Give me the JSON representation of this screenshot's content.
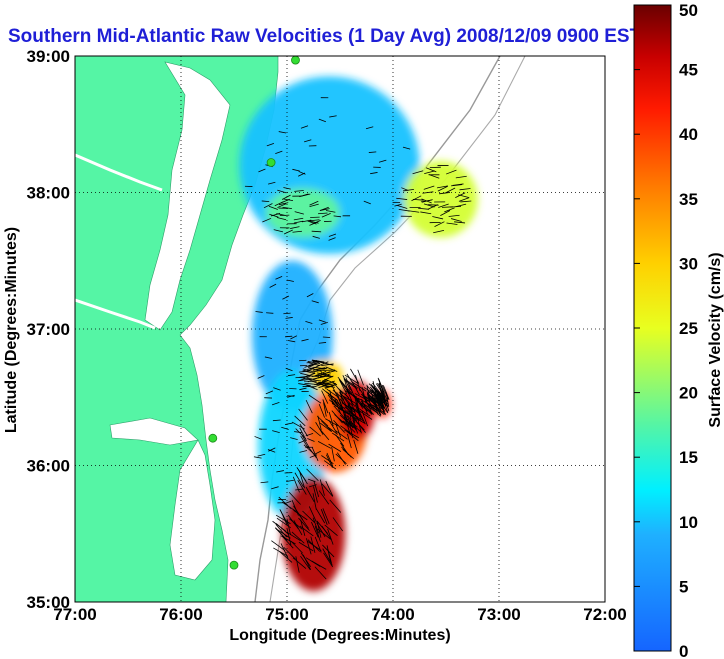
{
  "chart_data": {
    "type": "heatmap",
    "title": "Southern Mid-Atlantic Raw Velocities (1 Day Avg) 2008/12/09 0900 EST",
    "xlabel": "Longitude (Degrees:Minutes)",
    "ylabel": "Latitude (Degrees:Minutes)",
    "xlim": [
      -77,
      -72
    ],
    "ylim": [
      35,
      39
    ],
    "x_ticks": [
      {
        "value": -77,
        "label": "77:00"
      },
      {
        "value": -76,
        "label": "76:00"
      },
      {
        "value": -75,
        "label": "75:00"
      },
      {
        "value": -74,
        "label": "74:00"
      },
      {
        "value": -73,
        "label": "73:00"
      },
      {
        "value": -72,
        "label": "72:00"
      }
    ],
    "y_ticks": [
      {
        "value": 35,
        "label": "35:00"
      },
      {
        "value": 36,
        "label": "36:00"
      },
      {
        "value": 37,
        "label": "37:00"
      },
      {
        "value": 38,
        "label": "38:00"
      },
      {
        "value": 39,
        "label": "39:00"
      }
    ],
    "grid": true,
    "colorbar": {
      "label": "Surface Velocity (cm/s)",
      "range": [
        0,
        50
      ],
      "ticks": [
        {
          "value": 0,
          "label": "0"
        },
        {
          "value": 5,
          "label": "5"
        },
        {
          "value": 10,
          "label": "10"
        },
        {
          "value": 15,
          "label": "15"
        },
        {
          "value": 20,
          "label": "20"
        },
        {
          "value": 25,
          "label": "25"
        },
        {
          "value": 30,
          "label": "30"
        },
        {
          "value": 35,
          "label": "35"
        },
        {
          "value": 40,
          "label": "40"
        },
        {
          "value": 45,
          "label": "45"
        },
        {
          "value": 50,
          "label": "50"
        }
      ]
    },
    "colors": {
      "land": "#55f5a5",
      "water_bg": "#ffffff",
      "title": "#1f1fd6",
      "stations": "#33dd33",
      "bathymetry": "#999999"
    },
    "field_patches": [
      {
        "lon": -74.6,
        "lat": 38.2,
        "rx": 0.85,
        "ry": 0.65,
        "speed": 10
      },
      {
        "lon": -73.55,
        "lat": 37.95,
        "rx": 0.35,
        "ry": 0.28,
        "speed": 24
      },
      {
        "lon": -74.85,
        "lat": 37.85,
        "rx": 0.35,
        "ry": 0.18,
        "speed": 18
      },
      {
        "lon": -74.95,
        "lat": 36.95,
        "rx": 0.38,
        "ry": 0.55,
        "speed": 9
      },
      {
        "lon": -74.65,
        "lat": 36.65,
        "rx": 0.18,
        "ry": 0.12,
        "speed": 30
      },
      {
        "lon": -74.95,
        "lat": 36.15,
        "rx": 0.32,
        "ry": 0.55,
        "speed": 11
      },
      {
        "lon": -74.55,
        "lat": 36.25,
        "rx": 0.3,
        "ry": 0.3,
        "speed": 38
      },
      {
        "lon": -74.35,
        "lat": 36.4,
        "rx": 0.18,
        "ry": 0.22,
        "speed": 46
      },
      {
        "lon": -74.75,
        "lat": 35.5,
        "rx": 0.3,
        "ry": 0.42,
        "speed": 47
      },
      {
        "lon": -74.1,
        "lat": 36.45,
        "rx": 0.08,
        "ry": 0.1,
        "speed": 42
      }
    ],
    "stations": [
      {
        "lon": -74.92,
        "lat": 38.97
      },
      {
        "lon": -75.15,
        "lat": 38.22
      },
      {
        "lon": -75.7,
        "lat": 36.2
      },
      {
        "lon": -75.5,
        "lat": 35.27
      }
    ]
  }
}
